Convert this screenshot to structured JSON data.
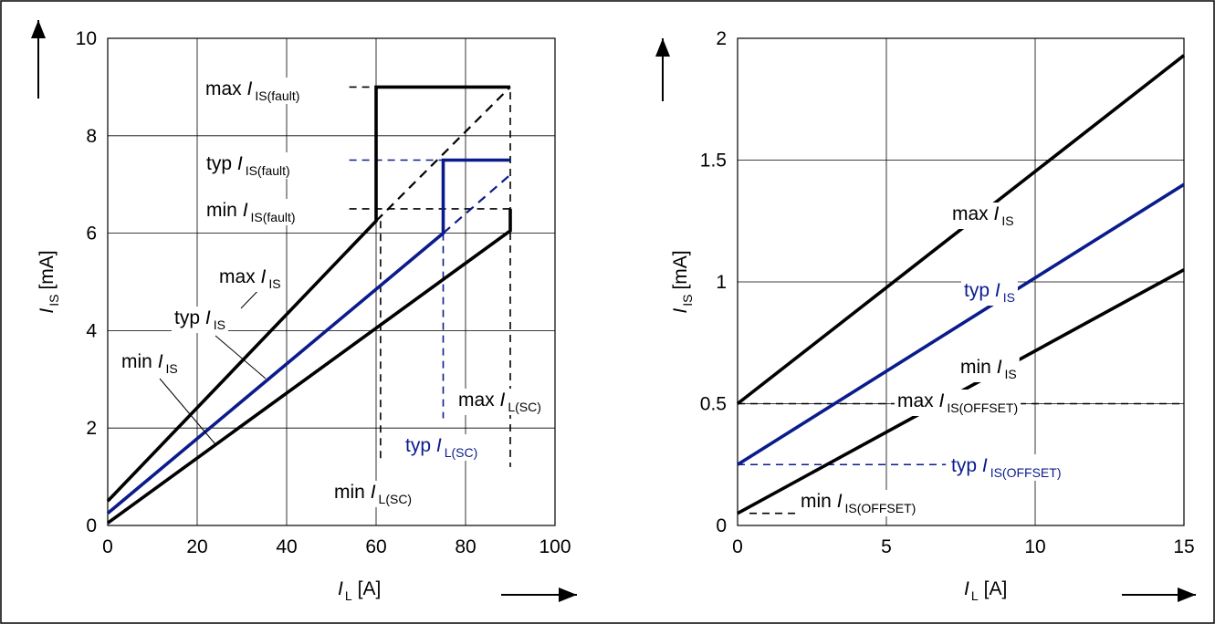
{
  "colors": {
    "black_series": "#000000",
    "typ_series": "#0a1c8c",
    "grid": "#000000"
  },
  "chart_data": [
    {
      "type": "line",
      "title": "",
      "xlabel": {
        "symbol": "I",
        "sub": "L",
        "unit": "[A]"
      },
      "ylabel": {
        "symbol": "I",
        "sub": "IS",
        "unit": "[mA]"
      },
      "xlim": [
        0,
        100
      ],
      "ylim": [
        0,
        10
      ],
      "xticks": [
        "0",
        "20",
        "40",
        "60",
        "80",
        "100"
      ],
      "yticks": [
        "0",
        "2",
        "4",
        "6",
        "8",
        "10"
      ],
      "grid": true,
      "series": [
        {
          "name": "max I_IS",
          "color": "#000000",
          "style": "solid",
          "points": [
            [
              0,
              0.5
            ],
            [
              60,
              6.25
            ],
            [
              60,
              9.0
            ],
            [
              90,
              9.0
            ]
          ]
        },
        {
          "color": "#000000",
          "style": "dashed",
          "points": [
            [
              60,
              6.25
            ],
            [
              90,
              9.0
            ]
          ]
        },
        {
          "name": "typ I_IS",
          "color": "#0a1c8c",
          "style": "solid",
          "points": [
            [
              0,
              0.25
            ],
            [
              75,
              6.0
            ],
            [
              75,
              7.5
            ],
            [
              90,
              7.5
            ]
          ]
        },
        {
          "color": "#0a1c8c",
          "style": "dashed",
          "points": [
            [
              75,
              6.0
            ],
            [
              90,
              7.2
            ]
          ]
        },
        {
          "name": "min I_IS",
          "color": "#000000",
          "style": "solid",
          "points": [
            [
              0,
              0.05
            ],
            [
              90,
              6.05
            ],
            [
              90,
              6.5
            ]
          ]
        },
        {
          "color": "#000000",
          "style": "dashed",
          "points": [
            [
              60,
              9.0
            ],
            [
              60,
              6.25
            ]
          ]
        }
      ],
      "reference_lines": [
        {
          "color": "#000000",
          "points": [
            [
              54,
              9.0
            ],
            [
              90,
              9.0
            ],
            [
              90,
              1.2
            ]
          ]
        },
        {
          "color": "#0a1c8c",
          "points": [
            [
              54,
              7.5
            ],
            [
              75,
              7.5
            ]
          ]
        },
        {
          "color": "#0a1c8c",
          "points": [
            [
              75,
              6.0
            ],
            [
              75,
              2.2
            ]
          ]
        },
        {
          "color": "#000000",
          "points": [
            [
              54,
              6.5
            ],
            [
              90,
              6.5
            ]
          ]
        },
        {
          "color": "#000000",
          "points": [
            [
              61,
              6.25
            ],
            [
              61,
              1.3
            ]
          ]
        }
      ],
      "annotations": [
        {
          "pre": "max ",
          "sym": "I",
          "sub": "IS(fault)",
          "color": "#000000"
        },
        {
          "pre": "typ ",
          "sym": "I",
          "sub": "IS(fault)",
          "color": "#000000"
        },
        {
          "pre": "min ",
          "sym": "I",
          "sub": "IS(fault)",
          "color": "#000000"
        },
        {
          "pre": "max  ",
          "sym": "I",
          "sub": "IS",
          "color": "#000000"
        },
        {
          "pre": "typ ",
          "sym": "I",
          "sub": "IS",
          "color": "#000000"
        },
        {
          "pre": "min ",
          "sym": "I",
          "sub": "IS",
          "color": "#000000"
        },
        {
          "pre": "max ",
          "sym": "I",
          "sub": "L(SC)",
          "color": "#000000"
        },
        {
          "pre": "typ ",
          "sym": "I",
          "sub": "L(SC)",
          "color": "#0a1c8c"
        },
        {
          "pre": "min ",
          "sym": "I",
          "sub": "L(SC)",
          "color": "#000000"
        }
      ]
    },
    {
      "type": "line",
      "title": "",
      "xlabel": {
        "symbol": "I",
        "sub": "L",
        "unit": "[A]"
      },
      "ylabel": {
        "symbol": "I",
        "sub": "IS",
        "unit": "[mA]"
      },
      "xlim": [
        0,
        15
      ],
      "ylim": [
        0,
        2
      ],
      "xticks": [
        "0",
        "5",
        "10",
        "15"
      ],
      "yticks": [
        "0",
        "0.5",
        "1",
        "1.5",
        "2"
      ],
      "grid": true,
      "series": [
        {
          "name": "max I_IS",
          "color": "#000000",
          "style": "solid",
          "points": [
            [
              0,
              0.5
            ],
            [
              15,
              1.93
            ]
          ]
        },
        {
          "name": "typ I_IS",
          "color": "#0a1c8c",
          "style": "solid",
          "points": [
            [
              0,
              0.25
            ],
            [
              15,
              1.4
            ]
          ]
        },
        {
          "name": "min I_IS",
          "color": "#000000",
          "style": "solid",
          "points": [
            [
              0,
              0.05
            ],
            [
              15,
              1.05
            ]
          ]
        }
      ],
      "reference_lines": [
        {
          "color": "#000000",
          "points": [
            [
              0,
              0.5
            ],
            [
              15,
              0.5
            ]
          ]
        },
        {
          "color": "#0a1c8c",
          "points": [
            [
              0,
              0.25
            ],
            [
              7,
              0.25
            ]
          ]
        },
        {
          "color": "#000000",
          "points": [
            [
              0.4,
              0.05
            ],
            [
              2,
              0.05
            ]
          ]
        }
      ],
      "annotations": [
        {
          "pre": "max ",
          "sym": "I",
          "sub": "IS",
          "color": "#000000"
        },
        {
          "pre": "typ ",
          "sym": "I",
          "sub": "IS",
          "color": "#0a1c8c"
        },
        {
          "pre": "min ",
          "sym": "I",
          "sub": "IS",
          "color": "#000000"
        },
        {
          "pre": "max ",
          "sym": "I",
          "sub": "IS(OFFSET)",
          "color": "#000000"
        },
        {
          "pre": "typ ",
          "sym": "I",
          "sub": "IS(OFFSET)",
          "color": "#0a1c8c"
        },
        {
          "pre": "min ",
          "sym": "I",
          "sub": "IS(OFFSET)",
          "color": "#000000"
        }
      ]
    }
  ]
}
